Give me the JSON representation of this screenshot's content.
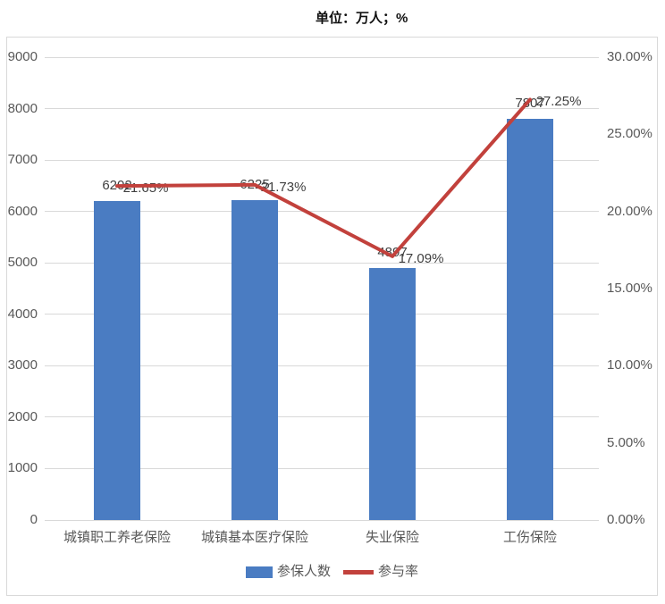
{
  "title": "单位：万人；%",
  "colors": {
    "bar": "#4A7CC2",
    "line": "#C2413C",
    "grid": "#D9D9D9",
    "frame_border": "#D9D9D9",
    "axis_text": "#595959",
    "label_text": "#404040",
    "title_text": "#111111"
  },
  "chart_data": {
    "type": "bar+line combo",
    "title": "单位：万人；%",
    "categories": [
      "城镇职工养老保险",
      "城镇基本医疗保险",
      "失业保险",
      "工伤保险"
    ],
    "series": [
      {
        "name": "参保人数",
        "type": "bar",
        "axis": "left",
        "values": [
          6202,
          6225,
          4897,
          7807
        ],
        "value_labels": [
          "6202",
          "6225",
          "4897",
          "7807"
        ]
      },
      {
        "name": "参与率",
        "type": "line",
        "axis": "right",
        "values": [
          21.65,
          21.73,
          17.09,
          27.25
        ],
        "value_labels": [
          "21.65%",
          "21.73%",
          "17.09%",
          "27.25%"
        ]
      }
    ],
    "left_axis": {
      "min": 0,
      "max": 9000,
      "step": 1000,
      "ticks": [
        "0",
        "1000",
        "2000",
        "3000",
        "4000",
        "5000",
        "6000",
        "7000",
        "8000",
        "9000"
      ]
    },
    "right_axis": {
      "min": 0,
      "max": 30,
      "step": 5,
      "ticks": [
        "0.00%",
        "5.00%",
        "10.00%",
        "15.00%",
        "20.00%",
        "25.00%",
        "30.00%"
      ]
    },
    "grid": true,
    "legend_position": "bottom",
    "legend": [
      {
        "label": "参保人数",
        "swatch": "bar"
      },
      {
        "label": "参与率",
        "swatch": "line"
      }
    ]
  }
}
